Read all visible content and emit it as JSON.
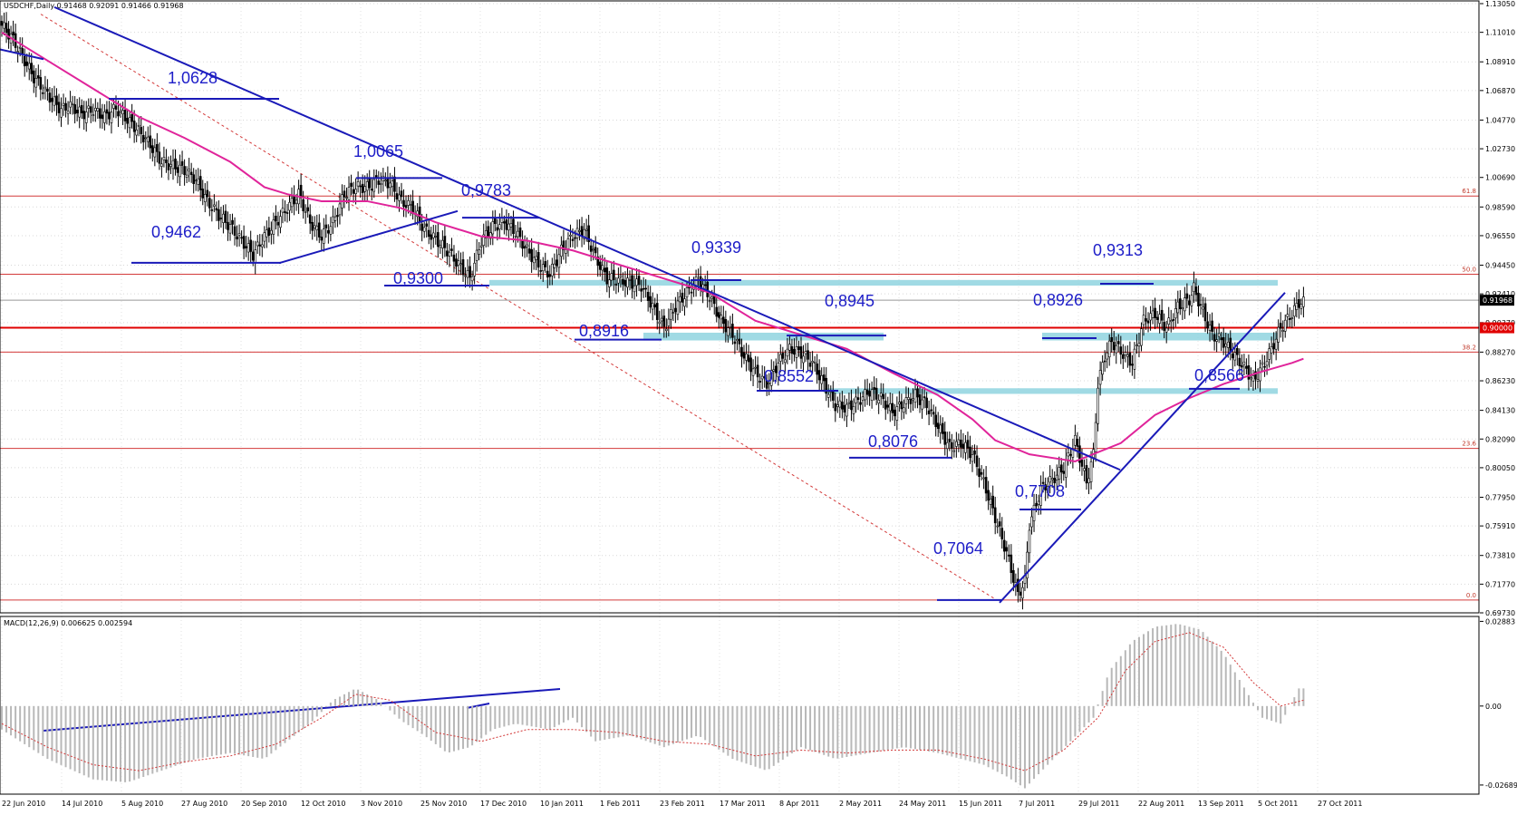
{
  "chart_data": [
    {
      "type": "line",
      "subtype": "candlestick",
      "title": "USDCHF,Daily  0.91468 0.92091 0.91466 0.91968",
      "symbol": "USDCHF",
      "timeframe": "Daily",
      "ohlc_header": "0.91468 0.92091 0.91466 0.91968",
      "ylim": [
        0.6973,
        1.1305
      ],
      "y_ticks": [
        "1.13050",
        "1.11010",
        "1.08910",
        "1.06870",
        "1.04770",
        "1.02730",
        "1.00690",
        "0.98590",
        "0.96550",
        "0.94450",
        "0.92410",
        "0.90370",
        "0.88270",
        "0.86230",
        "0.84130",
        "0.82090",
        "0.80050",
        "0.77950",
        "0.75910",
        "0.73810",
        "0.71770",
        "0.69730"
      ],
      "x_ticks": [
        "22 Jun 2010",
        "14 Jul 2010",
        "5 Aug 2010",
        "27 Aug 2010",
        "20 Sep 2010",
        "12 Oct 2010",
        "3 Nov 2010",
        "25 Nov 2010",
        "17 Dec 2010",
        "10 Jan 2011",
        "1 Feb 2011",
        "23 Feb 2011",
        "17 Mar 2011",
        "8 Apr 2011",
        "2 May 2011",
        "24 May 2011",
        "15 Jun 2011",
        "7 Jul 2011",
        "29 Jul 2011",
        "22 Aug 2011",
        "13 Sep 2011",
        "5 Oct 2011",
        "27 Oct 2011"
      ],
      "close_path": [
        [
          0,
          1.115
        ],
        [
          5,
          1.105
        ],
        [
          10,
          1.09
        ],
        [
          14,
          1.078
        ],
        [
          18,
          1.07
        ],
        [
          22,
          1.062
        ],
        [
          26,
          1.055
        ],
        [
          30,
          1.058
        ],
        [
          35,
          1.052
        ],
        [
          40,
          1.055
        ],
        [
          45,
          1.05
        ],
        [
          50,
          1.056
        ],
        [
          55,
          1.048
        ],
        [
          60,
          1.04
        ],
        [
          65,
          1.03
        ],
        [
          70,
          1.018
        ],
        [
          75,
          1.015
        ],
        [
          80,
          1.012
        ],
        [
          85,
          1.005
        ],
        [
          90,
          0.99
        ],
        [
          95,
          0.98
        ],
        [
          100,
          0.972
        ],
        [
          105,
          0.962
        ],
        [
          110,
          0.952
        ],
        [
          115,
          0.965
        ],
        [
          120,
          0.975
        ],
        [
          125,
          0.985
        ],
        [
          130,
          0.995
        ],
        [
          135,
          0.975
        ],
        [
          140,
          0.965
        ],
        [
          145,
          0.975
        ],
        [
          150,
          0.995
        ],
        [
          155,
          1.0
        ],
        [
          160,
          1.0
        ],
        [
          165,
          1.005
        ],
        [
          170,
          1.003
        ],
        [
          175,
          0.99
        ],
        [
          180,
          0.985
        ],
        [
          185,
          0.97
        ],
        [
          190,
          0.963
        ],
        [
          195,
          0.955
        ],
        [
          200,
          0.945
        ],
        [
          205,
          0.935
        ],
        [
          210,
          0.962
        ],
        [
          215,
          0.972
        ],
        [
          220,
          0.975
        ],
        [
          225,
          0.968
        ],
        [
          230,
          0.955
        ],
        [
          235,
          0.945
        ],
        [
          240,
          0.938
        ],
        [
          245,
          0.955
        ],
        [
          250,
          0.965
        ],
        [
          255,
          0.97
        ],
        [
          260,
          0.95
        ],
        [
          265,
          0.935
        ],
        [
          270,
          0.934
        ],
        [
          275,
          0.932
        ],
        [
          280,
          0.93
        ],
        [
          285,
          0.915
        ],
        [
          290,
          0.9
        ],
        [
          295,
          0.915
        ],
        [
          300,
          0.925
        ],
        [
          305,
          0.934
        ],
        [
          310,
          0.922
        ],
        [
          315,
          0.905
        ],
        [
          320,
          0.895
        ],
        [
          325,
          0.88
        ],
        [
          330,
          0.868
        ],
        [
          335,
          0.86
        ],
        [
          340,
          0.875
        ],
        [
          345,
          0.885
        ],
        [
          350,
          0.882
        ],
        [
          355,
          0.875
        ],
        [
          360,
          0.86
        ],
        [
          365,
          0.845
        ],
        [
          370,
          0.843
        ],
        [
          375,
          0.848
        ],
        [
          380,
          0.855
        ],
        [
          385,
          0.85
        ],
        [
          390,
          0.84
        ],
        [
          395,
          0.846
        ],
        [
          400,
          0.852
        ],
        [
          405,
          0.845
        ],
        [
          410,
          0.83
        ],
        [
          415,
          0.815
        ],
        [
          420,
          0.818
        ],
        [
          425,
          0.81
        ],
        [
          430,
          0.79
        ],
        [
          435,
          0.765
        ],
        [
          440,
          0.74
        ],
        [
          445,
          0.71
        ],
        [
          448,
          0.72
        ],
        [
          450,
          0.76
        ],
        [
          455,
          0.785
        ],
        [
          460,
          0.792
        ],
        [
          465,
          0.8
        ],
        [
          470,
          0.82
        ],
        [
          475,
          0.79
        ],
        [
          478,
          0.81
        ],
        [
          480,
          0.86
        ],
        [
          483,
          0.88
        ],
        [
          486,
          0.89
        ],
        [
          490,
          0.883
        ],
        [
          495,
          0.875
        ],
        [
          500,
          0.905
        ],
        [
          505,
          0.91
        ],
        [
          510,
          0.9
        ],
        [
          515,
          0.915
        ],
        [
          520,
          0.92
        ],
        [
          522,
          0.928
        ],
        [
          525,
          0.915
        ],
        [
          530,
          0.895
        ],
        [
          535,
          0.89
        ],
        [
          540,
          0.88
        ],
        [
          545,
          0.87
        ],
        [
          548,
          0.862
        ],
        [
          552,
          0.872
        ],
        [
          556,
          0.885
        ],
        [
          560,
          0.9
        ],
        [
          565,
          0.91
        ],
        [
          568,
          0.918
        ]
      ],
      "ma_path": [
        [
          0,
          1.11
        ],
        [
          20,
          1.09
        ],
        [
          40,
          1.07
        ],
        [
          60,
          1.05
        ],
        [
          80,
          1.035
        ],
        [
          100,
          1.018
        ],
        [
          115,
          1.0
        ],
        [
          125,
          0.995
        ],
        [
          140,
          0.99
        ],
        [
          160,
          0.99
        ],
        [
          175,
          0.985
        ],
        [
          190,
          0.975
        ],
        [
          210,
          0.965
        ],
        [
          230,
          0.962
        ],
        [
          250,
          0.955
        ],
        [
          270,
          0.945
        ],
        [
          290,
          0.935
        ],
        [
          310,
          0.925
        ],
        [
          330,
          0.905
        ],
        [
          350,
          0.895
        ],
        [
          370,
          0.885
        ],
        [
          390,
          0.868
        ],
        [
          410,
          0.852
        ],
        [
          425,
          0.835
        ],
        [
          435,
          0.82
        ],
        [
          450,
          0.81
        ],
        [
          470,
          0.805
        ],
        [
          490,
          0.818
        ],
        [
          505,
          0.838
        ],
        [
          520,
          0.85
        ],
        [
          535,
          0.86
        ],
        [
          550,
          0.868
        ],
        [
          565,
          0.875
        ],
        [
          570,
          0.878
        ]
      ],
      "horizontal_levels": [
        "1,0628",
        "1,0065",
        "0,9783",
        "0,9462",
        "0,9300",
        "0,9339",
        "0,8916",
        "0,8945",
        "0,8926",
        "0,9313",
        "0,8552",
        "0,8076",
        "0,7708",
        "0,7064",
        "0,8566"
      ],
      "fibonacci": [
        {
          "label": "61.8",
          "value": 0.9937
        },
        {
          "label": "50.0",
          "value": 0.9381
        },
        {
          "label": "38.2",
          "value": 0.8827
        },
        {
          "label": "23.6",
          "value": 0.8142
        },
        {
          "label": "0.0",
          "value": 0.7064
        }
      ],
      "key_lines": [
        {
          "label": "0.90000",
          "value": 0.9
        }
      ],
      "last_price": "0.91968",
      "colors": {
        "candles": "#000000",
        "ma": "#e0249a",
        "trend": "#1a1ab8",
        "fib": "#d33a3a",
        "zone": "#8fd3df",
        "key": "#e00000",
        "last": "#000000"
      }
    },
    {
      "type": "bar",
      "subtype": "macd-histogram",
      "title": "MACD(12,26,9) 0.006625 0.002594",
      "ylim": [
        -0.03,
        0.0305
      ],
      "y_ticks": [
        "0.02883",
        "0.00",
        "-0.02689"
      ],
      "histogram_path": [
        [
          0,
          -0.008
        ],
        [
          20,
          -0.018
        ],
        [
          40,
          -0.025
        ],
        [
          55,
          -0.026
        ],
        [
          70,
          -0.022
        ],
        [
          85,
          -0.018
        ],
        [
          100,
          -0.016
        ],
        [
          115,
          -0.018
        ],
        [
          125,
          -0.012
        ],
        [
          135,
          -0.006
        ],
        [
          145,
          0.002
        ],
        [
          155,
          0.006
        ],
        [
          165,
          0.002
        ],
        [
          175,
          -0.005
        ],
        [
          185,
          -0.01
        ],
        [
          195,
          -0.016
        ],
        [
          205,
          -0.014
        ],
        [
          215,
          -0.008
        ],
        [
          225,
          -0.006
        ],
        [
          240,
          -0.008
        ],
        [
          250,
          -0.004
        ],
        [
          260,
          -0.012
        ],
        [
          275,
          -0.01
        ],
        [
          290,
          -0.014
        ],
        [
          305,
          -0.01
        ],
        [
          320,
          -0.018
        ],
        [
          335,
          -0.022
        ],
        [
          350,
          -0.014
        ],
        [
          365,
          -0.018
        ],
        [
          380,
          -0.016
        ],
        [
          395,
          -0.014
        ],
        [
          410,
          -0.016
        ],
        [
          420,
          -0.018
        ],
        [
          430,
          -0.02
        ],
        [
          440,
          -0.024
        ],
        [
          448,
          -0.028
        ],
        [
          458,
          -0.02
        ],
        [
          468,
          -0.012
        ],
        [
          478,
          -0.004
        ],
        [
          485,
          0.012
        ],
        [
          495,
          0.022
        ],
        [
          505,
          0.027
        ],
        [
          515,
          0.028
        ],
        [
          525,
          0.026
        ],
        [
          535,
          0.018
        ],
        [
          545,
          0.005
        ],
        [
          552,
          -0.004
        ],
        [
          560,
          -0.006
        ],
        [
          568,
          0.006
        ]
      ],
      "signal_path": [
        [
          0,
          -0.006
        ],
        [
          20,
          -0.014
        ],
        [
          40,
          -0.02
        ],
        [
          60,
          -0.022
        ],
        [
          80,
          -0.019
        ],
        [
          100,
          -0.017
        ],
        [
          120,
          -0.013
        ],
        [
          140,
          -0.004
        ],
        [
          155,
          0.004
        ],
        [
          170,
          0.002
        ],
        [
          190,
          -0.009
        ],
        [
          210,
          -0.012
        ],
        [
          230,
          -0.008
        ],
        [
          250,
          -0.008
        ],
        [
          270,
          -0.009
        ],
        [
          290,
          -0.012
        ],
        [
          310,
          -0.013
        ],
        [
          330,
          -0.017
        ],
        [
          350,
          -0.015
        ],
        [
          370,
          -0.016
        ],
        [
          390,
          -0.015
        ],
        [
          410,
          -0.015
        ],
        [
          430,
          -0.018
        ],
        [
          448,
          -0.022
        ],
        [
          465,
          -0.015
        ],
        [
          480,
          -0.004
        ],
        [
          492,
          0.012
        ],
        [
          505,
          0.022
        ],
        [
          520,
          0.025
        ],
        [
          535,
          0.02
        ],
        [
          548,
          0.008
        ],
        [
          560,
          0.0
        ],
        [
          570,
          0.002
        ]
      ]
    }
  ]
}
